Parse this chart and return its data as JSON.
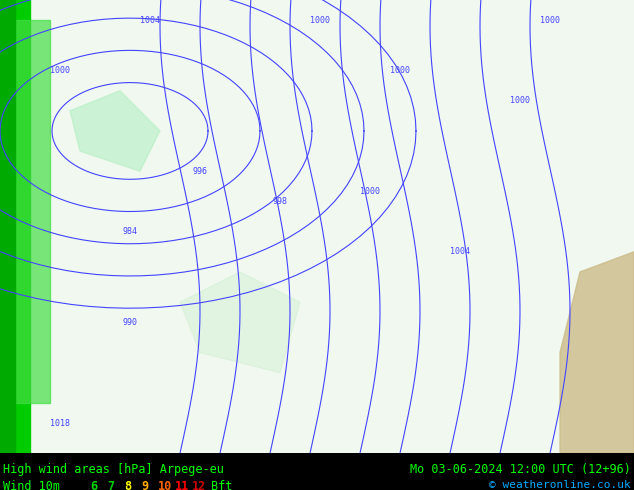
{
  "title_left": "High wind areas [hPa] Arpege-eu",
  "title_right": "Mo 03-06-2024 12:00 UTC (12+96)",
  "subtitle_left": "Wind 10m",
  "bft_labels": [
    "6",
    "7",
    "8",
    "9",
    "10",
    "11",
    "12"
  ],
  "bft_colors": [
    "#00dd00",
    "#00cc00",
    "#ffff00",
    "#ffaa00",
    "#ff6600",
    "#ff0000",
    "#cc0000"
  ],
  "bft_suffix": "Bft",
  "copyright": "© weatheronline.co.uk",
  "bg_color": "#ffffff",
  "map_bg": "#e8f4e8",
  "bottom_bg": "#000000",
  "bottom_text_color": "#00ff00",
  "font_size_title": 9,
  "font_size_sub": 9,
  "figsize": [
    6.34,
    4.9
  ],
  "dpi": 100
}
